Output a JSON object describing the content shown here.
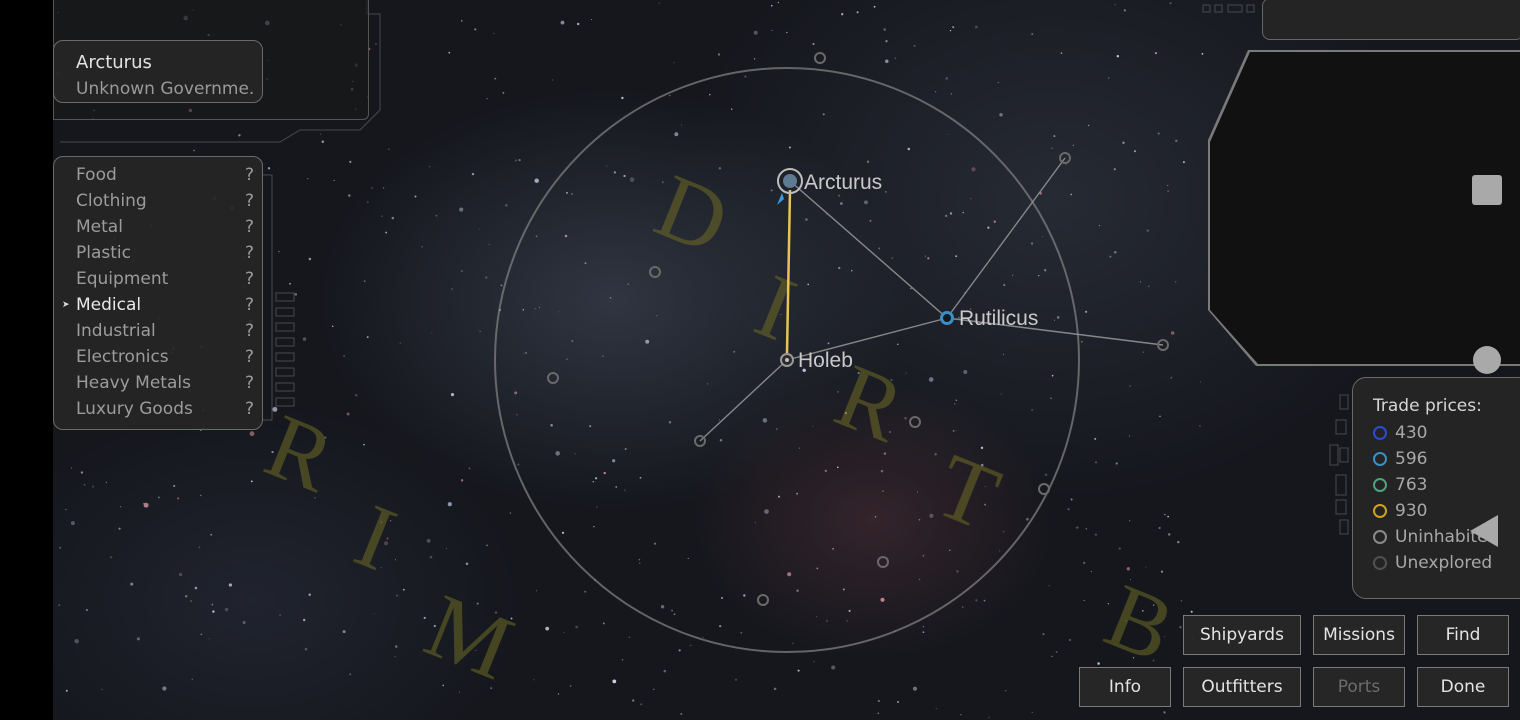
{
  "system_panel": {
    "name": "Arcturus",
    "government": "Unknown Governme..."
  },
  "commodities": [
    {
      "name": "Food",
      "price": "?"
    },
    {
      "name": "Clothing",
      "price": "?"
    },
    {
      "name": "Metal",
      "price": "?"
    },
    {
      "name": "Plastic",
      "price": "?"
    },
    {
      "name": "Equipment",
      "price": "?"
    },
    {
      "name": "Medical",
      "price": "?",
      "selected": true
    },
    {
      "name": "Industrial",
      "price": "?"
    },
    {
      "name": "Electronics",
      "price": "?"
    },
    {
      "name": "Heavy Metals",
      "price": "?"
    },
    {
      "name": "Luxury Goods",
      "price": "?"
    }
  ],
  "trade_prices": {
    "title": "Trade prices:",
    "legend": [
      {
        "label": "430",
        "color": "#2a4bd4"
      },
      {
        "label": "596",
        "color": "#3a8fc4"
      },
      {
        "label": "763",
        "color": "#4fa37a"
      },
      {
        "label": "930",
        "color": "#d2a21c"
      },
      {
        "label": "Uninhabited",
        "color": "#8a8a8a"
      },
      {
        "label": "Unexplored",
        "color": "#505050"
      }
    ]
  },
  "map": {
    "systems": [
      {
        "id": "arcturus",
        "name": "Arcturus",
        "color": "#7a9ab8"
      },
      {
        "id": "rutilicus",
        "name": "Rutilicus",
        "color": "#3a8fc4"
      },
      {
        "id": "holeb",
        "name": "Holeb",
        "color": "#8a8a8a"
      }
    ],
    "route_color": "#e8c35a",
    "region_labels": [
      "DIRT",
      "RIM",
      "B"
    ]
  },
  "buttons": {
    "shipyards": "Shipyards",
    "missions": "Missions",
    "find": "Find",
    "info": "Info",
    "outfitters": "Outfitters",
    "ports": "Ports",
    "done": "Done"
  }
}
